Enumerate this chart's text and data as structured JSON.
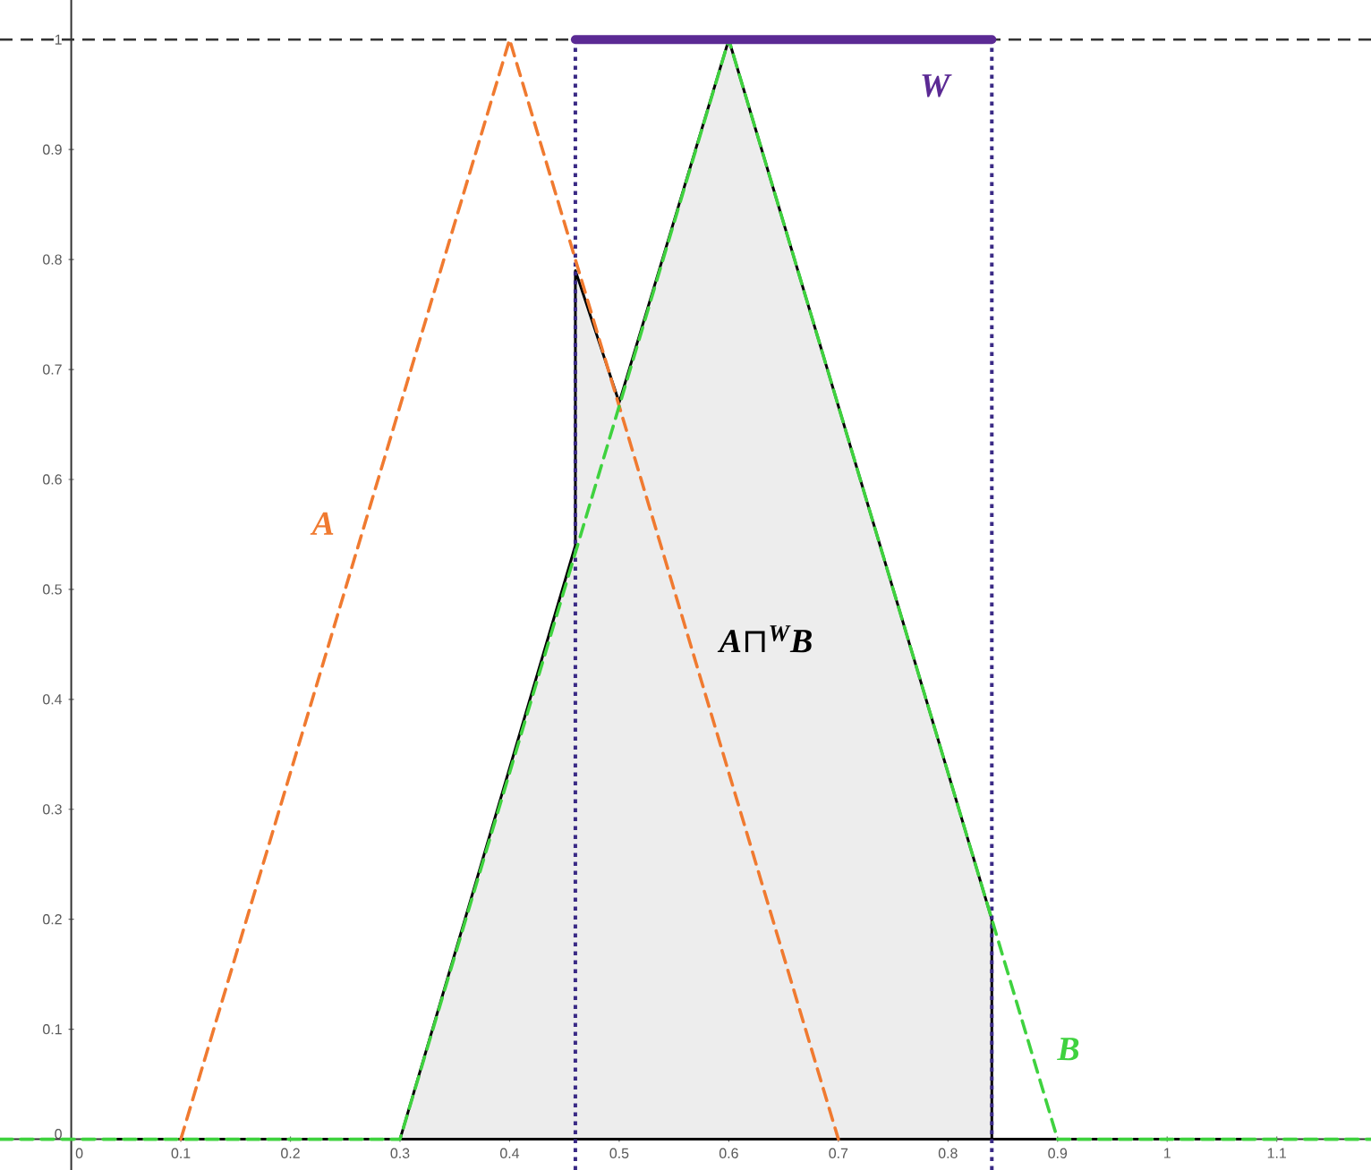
{
  "chart_data": {
    "type": "line",
    "series": [
      {
        "name": "A",
        "color": "#f07a30",
        "line_style": "dashed",
        "x": [
          0.1,
          0.4,
          0.7
        ],
        "values": [
          0,
          1,
          0
        ]
      },
      {
        "name": "B",
        "color": "#3fd23f",
        "line_style": "dashed",
        "x": [
          -0.065,
          0.3,
          0.6,
          0.9,
          1.186
        ],
        "values": [
          0,
          0,
          1,
          0,
          0
        ]
      },
      {
        "name": "W",
        "color": "#5b2a94",
        "line_style": "solid",
        "x": [
          0.46,
          0.84
        ],
        "values": [
          1,
          1
        ]
      },
      {
        "name": "A⊓$^{W}$B",
        "type": "area",
        "color": "#000000",
        "line_style": "solid",
        "x": [
          0.04,
          0.3,
          0.46,
          0.46,
          0.5,
          0.6,
          0.84,
          0.84,
          1.08
        ],
        "values": [
          0,
          0,
          0.54,
          0.79,
          0.67,
          1,
          0.2,
          0,
          0
        ]
      }
    ],
    "xlim": [
      -0.065,
      1.186
    ],
    "ylim": [
      -0.028,
      1.036
    ],
    "xticks": [
      0,
      0.1,
      0.2,
      0.3,
      0.4,
      0.5,
      0.6,
      0.7,
      0.8,
      0.9,
      1,
      1.1
    ],
    "yticks": [
      0,
      0.1,
      0.2,
      0.3,
      0.4,
      0.5,
      0.6,
      0.7,
      0.8,
      0.9,
      1
    ],
    "ref_lines": [
      {
        "axis": "y",
        "value": 1,
        "color": "#333333",
        "line_style": "dashed"
      },
      {
        "axis": "x",
        "value": 0.46,
        "color": "#3a2a85",
        "line_style": "dotted"
      },
      {
        "axis": "x",
        "value": 0.84,
        "color": "#3a2a85",
        "line_style": "dotted"
      }
    ]
  }
}
